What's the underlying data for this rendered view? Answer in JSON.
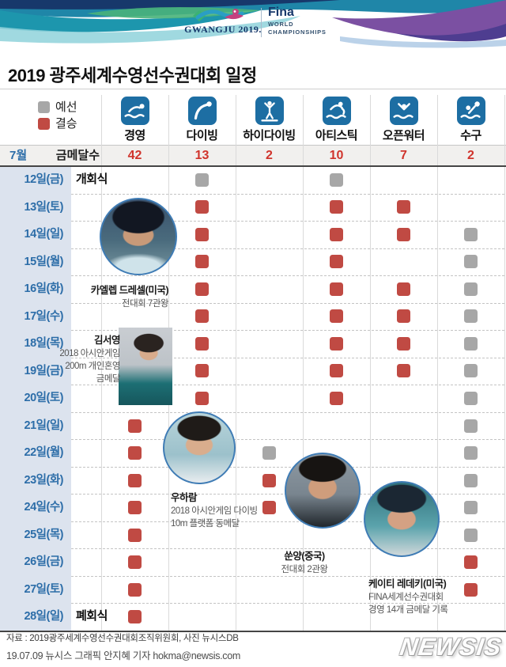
{
  "header": {
    "gwangju_logo": "GWANGJU 2019.",
    "fina": "Fina",
    "fina_sub1": "WORLD",
    "fina_sub2": "CHAMPIONSHIPS"
  },
  "title": "2019 광주세계수영선수권대회 일정",
  "legend": {
    "prelim_label": "예선",
    "final_label": "결승"
  },
  "medal_row": {
    "month": "7월",
    "label": "금메달수"
  },
  "chart_data": {
    "type": "table",
    "title": "2019 광주세계수영선수권대회 일정",
    "legend": {
      "p": "예선",
      "f": "결승"
    },
    "sports": [
      {
        "name": "경영",
        "icon": "swimming",
        "golds": "42"
      },
      {
        "name": "다이빙",
        "icon": "diving",
        "golds": "13"
      },
      {
        "name": "하이다이빙",
        "icon": "high-diving",
        "golds": "2"
      },
      {
        "name": "아티스틱",
        "icon": "artistic",
        "golds": "10"
      },
      {
        "name": "오픈워터",
        "icon": "open-water",
        "golds": "7"
      },
      {
        "name": "수구",
        "icon": "water-polo",
        "golds": "2"
      }
    ],
    "rows": [
      {
        "date": "12일(금)",
        "note": "개회식",
        "cells": [
          "",
          "p",
          "",
          "p",
          "",
          ""
        ]
      },
      {
        "date": "13일(토)",
        "note": "",
        "cells": [
          "",
          "f",
          "",
          "f",
          "f",
          ""
        ]
      },
      {
        "date": "14일(일)",
        "note": "",
        "cells": [
          "",
          "f",
          "",
          "f",
          "f",
          "p"
        ]
      },
      {
        "date": "15일(월)",
        "note": "",
        "cells": [
          "",
          "f",
          "",
          "f",
          "",
          "p"
        ]
      },
      {
        "date": "16일(화)",
        "note": "",
        "cells": [
          "",
          "f",
          "",
          "f",
          "f",
          "p"
        ]
      },
      {
        "date": "17일(수)",
        "note": "",
        "cells": [
          "",
          "f",
          "",
          "f",
          "f",
          "p"
        ]
      },
      {
        "date": "18일(목)",
        "note": "",
        "cells": [
          "",
          "f",
          "",
          "f",
          "f",
          "p"
        ]
      },
      {
        "date": "19일(금)",
        "note": "",
        "cells": [
          "",
          "f",
          "",
          "f",
          "f",
          "p"
        ]
      },
      {
        "date": "20일(토)",
        "note": "",
        "cells": [
          "",
          "f",
          "",
          "f",
          "",
          "p"
        ]
      },
      {
        "date": "21일(일)",
        "note": "",
        "cells": [
          "f",
          "",
          "",
          "",
          "",
          "p"
        ]
      },
      {
        "date": "22일(월)",
        "note": "",
        "cells": [
          "f",
          "",
          "p",
          "",
          "",
          "p"
        ]
      },
      {
        "date": "23일(화)",
        "note": "",
        "cells": [
          "f",
          "",
          "f",
          "",
          "",
          "p"
        ]
      },
      {
        "date": "24일(수)",
        "note": "",
        "cells": [
          "f",
          "",
          "f",
          "",
          "",
          "p"
        ]
      },
      {
        "date": "25일(목)",
        "note": "",
        "cells": [
          "f",
          "",
          "",
          "",
          "",
          "p"
        ]
      },
      {
        "date": "26일(금)",
        "note": "",
        "cells": [
          "f",
          "",
          "",
          "",
          "",
          "f"
        ]
      },
      {
        "date": "27일(토)",
        "note": "",
        "cells": [
          "f",
          "",
          "",
          "",
          "",
          "f"
        ]
      },
      {
        "date": "28일(일)",
        "note": "폐회식",
        "cells": [
          "f",
          "",
          "",
          "",
          "",
          ""
        ]
      }
    ]
  },
  "athletes": [
    {
      "name": "카엘렙 드레셀(미국)",
      "desc": [
        "전대회 7관왕"
      ]
    },
    {
      "name": "김서영",
      "desc": [
        "2018 아시안게임",
        "200m 개인혼영",
        "금메달"
      ]
    },
    {
      "name": "우하람",
      "desc": [
        "2018 아시안게임 다이빙",
        "10m 플랫폼 동메달"
      ]
    },
    {
      "name": "쑨양(중국)",
      "desc": [
        "전대회 2관왕"
      ]
    },
    {
      "name": "케이티 레데키(미국)",
      "desc": [
        "FINA세계선수권대회",
        "경영 14개 금메달 기록"
      ]
    }
  ],
  "footer": {
    "source": "자료 : 2019광주세계수영선수권대회조직위원회, 사진 뉴시스DB",
    "credit": "19.07.09 뉴시스 그래픽 안지혜 기자 hokma@newsis.com",
    "logo": "NEWSIS"
  },
  "colors": {
    "prelim": "#a7a7a7",
    "final": "#c04a43",
    "number_red": "#d0342c",
    "icon_blue": "#1d6ea3",
    "date_text": "#2c6da8",
    "date_bg": "#dce3ee"
  }
}
